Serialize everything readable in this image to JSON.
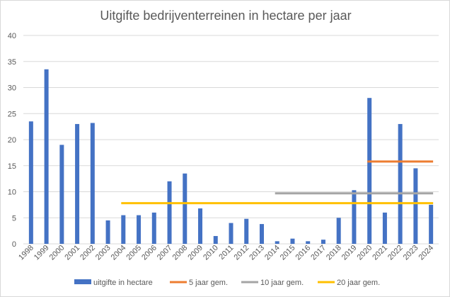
{
  "chart_data": {
    "type": "bar",
    "title": "Uitgifte bedrijventerreinen in hectare per jaar",
    "xlabel": "",
    "ylabel": "",
    "ylim": [
      0,
      40
    ],
    "yticks": [
      "0",
      "5",
      "10",
      "15",
      "20",
      "25",
      "30",
      "35",
      "40"
    ],
    "grid": true,
    "legend_position": "bottom",
    "categories": [
      "1998",
      "1999",
      "2000",
      "2001",
      "2002",
      "2003",
      "2004",
      "2005",
      "2006",
      "2007",
      "2008",
      "2009",
      "2010",
      "2011",
      "2012",
      "2013",
      "2014",
      "2015",
      "2016",
      "2017",
      "2018",
      "2019",
      "2020",
      "2021",
      "2022",
      "2023",
      "2024"
    ],
    "series": [
      {
        "name": "uitgifte in hectare",
        "kind": "bar",
        "color": "#4472C4",
        "values": [
          23.5,
          33.5,
          19,
          23,
          23.2,
          4.5,
          5.5,
          5.5,
          6,
          12,
          13.5,
          6.8,
          1.5,
          4,
          4.8,
          3.8,
          0.5,
          1,
          0.5,
          0.8,
          5,
          10.3,
          28,
          6,
          23,
          14.5,
          7.5
        ]
      },
      {
        "name": "5 jaar gem.",
        "kind": "line",
        "color": "#ED7D31",
        "from": "2020",
        "to": "2024",
        "value": 15.8
      },
      {
        "name": "10 jaar gem.",
        "kind": "line",
        "color": "#A5A5A5",
        "from": "2014",
        "to": "2024",
        "value": 9.7
      },
      {
        "name": "20 jaar gem.",
        "kind": "line",
        "color": "#FFC000",
        "from": "2004",
        "to": "2024",
        "value": 7.8
      }
    ]
  }
}
